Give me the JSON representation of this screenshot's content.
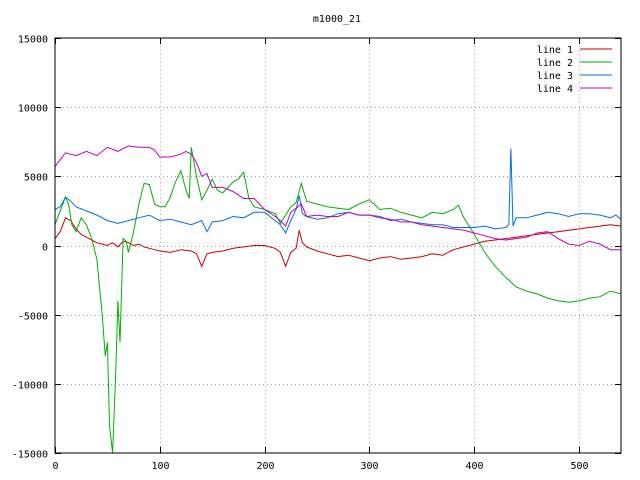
{
  "chart_data": {
    "type": "line",
    "title": "m1000_21",
    "xlabel": "",
    "ylabel": "",
    "xlim": [
      0,
      540
    ],
    "ylim": [
      -15000,
      15000
    ],
    "xticks": [
      0,
      100,
      200,
      300,
      400,
      500
    ],
    "yticks": [
      -15000,
      -10000,
      -5000,
      0,
      5000,
      10000,
      15000
    ],
    "grid": true,
    "legend_position": "top-right",
    "series": [
      {
        "name": "line 1",
        "color": "#cc0000",
        "x": [
          0,
          5,
          10,
          15,
          20,
          25,
          30,
          35,
          40,
          45,
          50,
          55,
          60,
          65,
          70,
          75,
          80,
          85,
          90,
          95,
          100,
          110,
          120,
          130,
          135,
          140,
          145,
          150,
          160,
          170,
          180,
          190,
          200,
          210,
          215,
          220,
          225,
          230,
          233,
          236,
          240,
          250,
          260,
          270,
          280,
          290,
          300,
          310,
          320,
          330,
          340,
          350,
          360,
          370,
          380,
          390,
          400,
          410,
          420,
          430,
          440,
          450,
          460,
          470,
          480,
          490,
          500,
          510,
          520,
          530,
          540
        ],
        "y": [
          500,
          1000,
          2000,
          1800,
          1200,
          800,
          600,
          400,
          200,
          100,
          0,
          200,
          -100,
          300,
          200,
          0,
          100,
          -100,
          -200,
          -300,
          -400,
          -500,
          -300,
          -400,
          -600,
          -1500,
          -600,
          -500,
          -400,
          -200,
          -100,
          0,
          0,
          -200,
          -500,
          -1500,
          -500,
          -200,
          1100,
          200,
          -100,
          -400,
          -600,
          -800,
          -700,
          -900,
          -1100,
          -900,
          -800,
          -1000,
          -900,
          -800,
          -600,
          -700,
          -300,
          -100,
          100,
          300,
          400,
          500,
          600,
          700,
          800,
          900,
          1000,
          1100,
          1200,
          1300,
          1400,
          1500,
          1400
        ]
      },
      {
        "name": "line 2",
        "color": "#00b000",
        "x": [
          0,
          5,
          10,
          13,
          16,
          20,
          25,
          30,
          35,
          40,
          45,
          48,
          50,
          52,
          55,
          58,
          60,
          62,
          65,
          68,
          70,
          75,
          80,
          85,
          90,
          95,
          100,
          105,
          110,
          115,
          120,
          125,
          128,
          130,
          135,
          140,
          145,
          150,
          155,
          160,
          165,
          170,
          175,
          180,
          185,
          190,
          200,
          210,
          215,
          220,
          225,
          230,
          235,
          240,
          250,
          260,
          270,
          280,
          290,
          300,
          310,
          320,
          330,
          340,
          350,
          360,
          370,
          380,
          385,
          390,
          400,
          410,
          420,
          430,
          440,
          450,
          460,
          470,
          480,
          490,
          500,
          510,
          520,
          530,
          540
        ],
        "y": [
          1500,
          2500,
          3500,
          3000,
          1500,
          1000,
          2000,
          1500,
          500,
          -1000,
          -5000,
          -8000,
          -7000,
          -13000,
          -15000,
          -9000,
          -4000,
          -7000,
          500,
          300,
          -500,
          1000,
          3000,
          4500,
          4400,
          3000,
          2800,
          2800,
          3500,
          4600,
          5400,
          4000,
          3400,
          7100,
          5000,
          3300,
          4000,
          4800,
          4000,
          3800,
          4200,
          4600,
          4800,
          5300,
          3400,
          2800,
          2600,
          2300,
          1600,
          2200,
          2800,
          3100,
          4500,
          3200,
          3000,
          2800,
          2700,
          2600,
          3000,
          3300,
          2600,
          2700,
          2400,
          2200,
          2000,
          2400,
          2300,
          2600,
          2900,
          2000,
          800,
          -500,
          -1500,
          -2300,
          -3000,
          -3300,
          -3500,
          -3800,
          -4000,
          -4100,
          -4000,
          -3800,
          -3700,
          -3300,
          -3500
        ]
      },
      {
        "name": "line 3",
        "color": "#0070e0",
        "x": [
          0,
          5,
          10,
          15,
          20,
          30,
          40,
          50,
          60,
          70,
          80,
          90,
          100,
          110,
          120,
          130,
          140,
          145,
          150,
          160,
          170,
          180,
          190,
          200,
          210,
          215,
          220,
          225,
          230,
          233,
          236,
          240,
          250,
          260,
          270,
          280,
          290,
          300,
          310,
          320,
          330,
          340,
          350,
          360,
          370,
          380,
          390,
          400,
          410,
          420,
          430,
          433,
          435,
          437,
          440,
          450,
          460,
          470,
          480,
          490,
          500,
          510,
          520,
          530,
          535,
          540
        ],
        "y": [
          2600,
          2800,
          3500,
          3200,
          2800,
          2500,
          2200,
          1800,
          1600,
          1800,
          2000,
          2200,
          1800,
          1900,
          1700,
          1500,
          1800,
          1000,
          1700,
          1800,
          2100,
          2000,
          2400,
          2400,
          1800,
          1500,
          900,
          1800,
          2600,
          3600,
          2300,
          2100,
          1900,
          2000,
          2300,
          2400,
          2200,
          2200,
          2100,
          1800,
          1900,
          1700,
          1600,
          1500,
          1500,
          1300,
          1300,
          1300,
          1400,
          1200,
          1300,
          1500,
          7000,
          1400,
          2000,
          2000,
          2200,
          2400,
          2300,
          2100,
          2300,
          2300,
          2200,
          2000,
          2200,
          1900
        ]
      },
      {
        "name": "line 4",
        "color": "#c000c0",
        "x": [
          0,
          5,
          10,
          15,
          20,
          30,
          40,
          50,
          60,
          70,
          80,
          90,
          95,
          100,
          110,
          120,
          125,
          130,
          135,
          140,
          145,
          150,
          160,
          170,
          180,
          190,
          200,
          210,
          215,
          220,
          225,
          230,
          235,
          240,
          250,
          260,
          270,
          280,
          290,
          300,
          310,
          320,
          330,
          340,
          350,
          360,
          370,
          380,
          390,
          400,
          410,
          420,
          430,
          440,
          450,
          460,
          470,
          480,
          490,
          500,
          510,
          520,
          530,
          540
        ],
        "y": [
          5700,
          6200,
          6700,
          6600,
          6500,
          6800,
          6500,
          7100,
          6800,
          7200,
          7100,
          7100,
          6900,
          6400,
          6400,
          6600,
          6800,
          6600,
          6000,
          5000,
          5200,
          4200,
          4200,
          3900,
          3400,
          3400,
          2600,
          2100,
          1800,
          1400,
          2400,
          2700,
          3000,
          2100,
          2200,
          2100,
          2100,
          2400,
          2200,
          2200,
          2000,
          1900,
          1700,
          1700,
          1500,
          1400,
          1300,
          1200,
          1100,
          900,
          700,
          500,
          400,
          500,
          600,
          900,
          1000,
          500,
          100,
          0,
          300,
          100,
          -300,
          -300
        ]
      }
    ]
  }
}
